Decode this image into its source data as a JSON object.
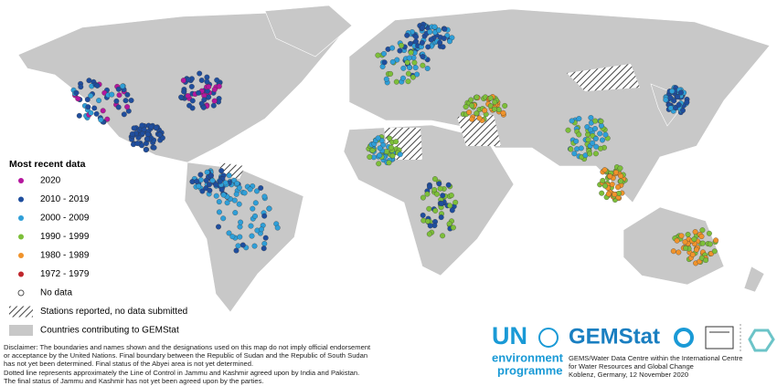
{
  "legend": {
    "title": "Most recent data",
    "items": [
      {
        "label": "2020",
        "marker": "circle",
        "color": "#b5179e"
      },
      {
        "label": "2010 - 2019",
        "marker": "circle",
        "color": "#1f4e9e"
      },
      {
        "label": "2000 - 2009",
        "marker": "circle",
        "color": "#2f9fd8"
      },
      {
        "label": "1990 - 1999",
        "marker": "circle",
        "color": "#7dbf3a"
      },
      {
        "label": "1980 - 1989",
        "marker": "circle",
        "color": "#f0932b"
      },
      {
        "label": "1972 - 1979",
        "marker": "circle",
        "color": "#c0272d"
      },
      {
        "label": "No data",
        "marker": "hollow",
        "color": "#555555"
      },
      {
        "label": "Stations reported, no data submitted",
        "marker": "hatch",
        "color": "#444444"
      },
      {
        "label": "Countries contributing to GEMStat",
        "marker": "fill",
        "color": "#c8c8c8"
      }
    ]
  },
  "disclaimer": [
    "Disclaimer: The boundaries and names shown and the designations used on this map do not imply official endorsement",
    "or acceptance by the United Nations. Final boundary between the Republic of Sudan and the Republic of South Sudan",
    "has not yet been determined. Final status of the Abyei area is not yet determined.",
    "Dotted line represents approximately the Line of Control in Jammu and Kashmir agreed upon by India and Pakistan.",
    "The final status of Jammu and Kashmir has not yet been agreed upon by the parties."
  ],
  "logos": {
    "un": "UN",
    "environment": "environment",
    "programme": "programme",
    "gemstat": "GEMStat"
  },
  "credit": [
    "GEMS/Water Data Centre within the International Centre",
    "for Water Resources and Global Change",
    "Koblenz, Germany, 12 November 2020"
  ]
}
